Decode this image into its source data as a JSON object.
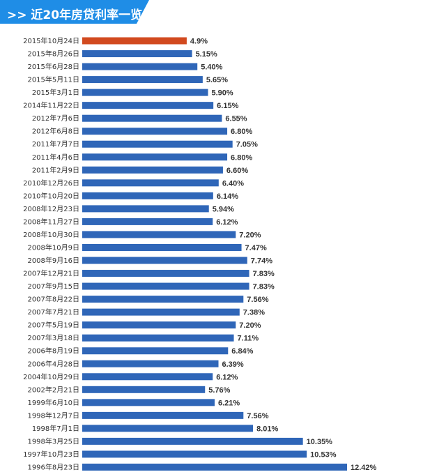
{
  "header": {
    "title": ">> 近20年房贷利率一览"
  },
  "colors": {
    "banner": "#1f8de6",
    "bar": "#2f66b8",
    "highlight": "#d24a1f"
  },
  "chart_data": {
    "type": "bar",
    "orientation": "horizontal",
    "title": "近20年房贷利率一览",
    "highlight_index": 0,
    "categories": [
      "2015年10月24日",
      "2015年8月26日",
      "2015年6月28日",
      "2015年5月11日",
      "2015年3月1日",
      "2014年11月22日",
      "2012年7月6日",
      "2012年6月8日",
      "2011年7月7日",
      "2011年4月6日",
      "2011年2月9日",
      "2010年12月26日",
      "2010年10月20日",
      "2008年12月23日",
      "2008年11月27日",
      "2008年10月30日",
      "2008年10月9日",
      "2008年9月16日",
      "2007年12月21日",
      "2007年9月15日",
      "2007年8月22日",
      "2007年7月21日",
      "2007年5月19日",
      "2007年3月18日",
      "2006年8月19日",
      "2006年4月28日",
      "2004年10月29日",
      "2002年2月21日",
      "1999年6月10日",
      "1998年12月7日",
      "1998年7月1日",
      "1998年3月25日",
      "1997年10月23日",
      "1996年8月23日"
    ],
    "values": [
      4.9,
      5.15,
      5.4,
      5.65,
      5.9,
      6.15,
      6.55,
      6.8,
      7.05,
      6.8,
      6.6,
      6.4,
      6.14,
      5.94,
      6.12,
      7.2,
      7.47,
      7.74,
      7.83,
      7.83,
      7.56,
      7.38,
      7.2,
      7.11,
      6.84,
      6.39,
      6.12,
      5.76,
      6.21,
      7.56,
      8.01,
      10.35,
      10.53,
      12.42
    ],
    "value_labels": [
      "4.9%",
      "5.15%",
      "5.40%",
      "5.65%",
      "5.90%",
      "6.15%",
      "6.55%",
      "6.80%",
      "7.05%",
      "6.80%",
      "6.60%",
      "6.40%",
      "6.14%",
      "5.94%",
      "6.12%",
      "7.20%",
      "7.47%",
      "7.74%",
      "7.83%",
      "7.83%",
      "7.56%",
      "7.38%",
      "7.20%",
      "7.11%",
      "6.84%",
      "6.39%",
      "6.12%",
      "5.76%",
      "6.21%",
      "7.56%",
      "8.01%",
      "10.35%",
      "10.53%",
      "12.42%"
    ],
    "xlim": [
      0,
      12.42
    ],
    "grid": false
  }
}
